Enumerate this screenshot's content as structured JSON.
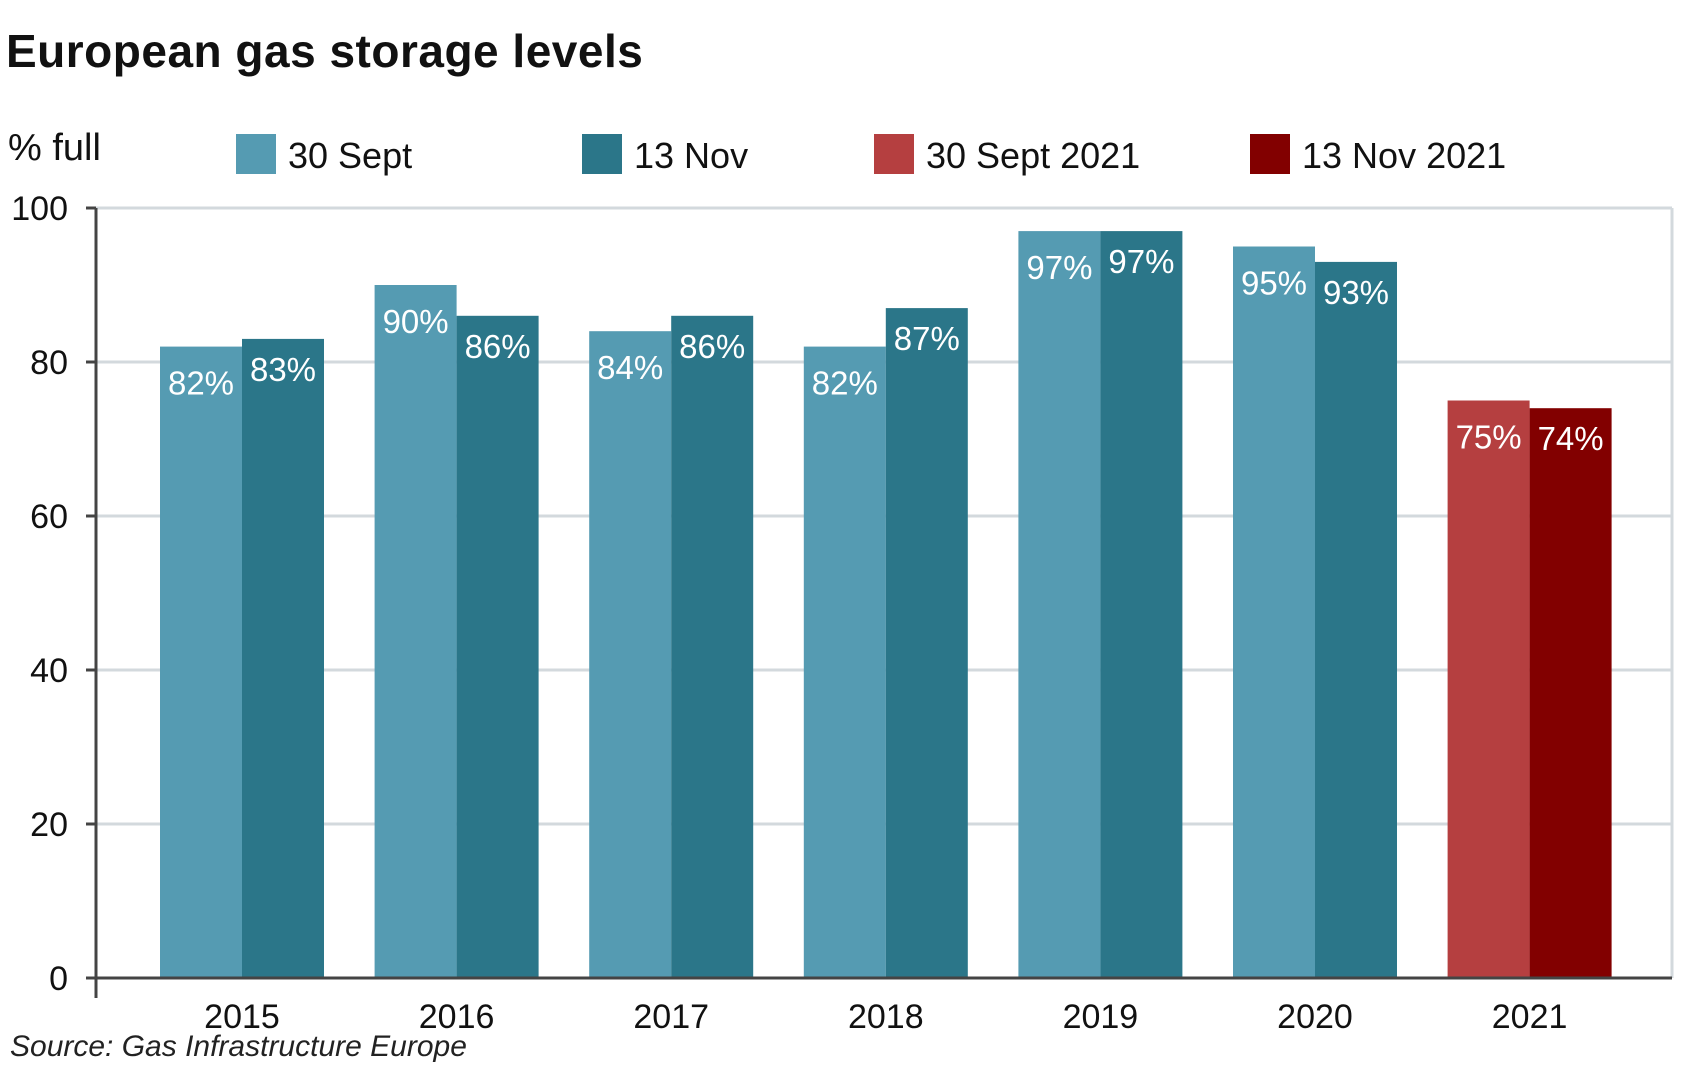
{
  "chart_data": {
    "type": "bar",
    "title": "European gas storage levels",
    "ylabel": "% full",
    "xlabel": "",
    "ylim": [
      0,
      100
    ],
    "yticks": [
      0,
      20,
      40,
      60,
      80,
      100
    ],
    "grid": true,
    "legend_position": "top",
    "categories": [
      "2015",
      "2016",
      "2017",
      "2018",
      "2019",
      "2020",
      "2021"
    ],
    "legend": [
      {
        "name": "30 Sept",
        "color": "#559bb2"
      },
      {
        "name": "13 Nov",
        "color": "#2b7689"
      },
      {
        "name": "30 Sept 2021",
        "color": "#b53f40"
      },
      {
        "name": "13 Nov 2021",
        "color": "#820000"
      }
    ],
    "series": [
      {
        "name": "30 Sept",
        "values": [
          82,
          90,
          84,
          82,
          97,
          95,
          75
        ],
        "labels": [
          "82%",
          "90%",
          "84%",
          "82%",
          "97%",
          "95%",
          "75%"
        ],
        "colors": [
          "#559bb2",
          "#559bb2",
          "#559bb2",
          "#559bb2",
          "#559bb2",
          "#559bb2",
          "#b53f40"
        ]
      },
      {
        "name": "13 Nov",
        "values": [
          83,
          86,
          86,
          87,
          97,
          93,
          74
        ],
        "labels": [
          "83%",
          "86%",
          "86%",
          "87%",
          "97%",
          "93%",
          "74%"
        ],
        "colors": [
          "#2b7689",
          "#2b7689",
          "#2b7689",
          "#2b7689",
          "#2b7689",
          "#2b7689",
          "#820000"
        ]
      }
    ],
    "source": "Source: Gas Infrastructure Europe"
  }
}
